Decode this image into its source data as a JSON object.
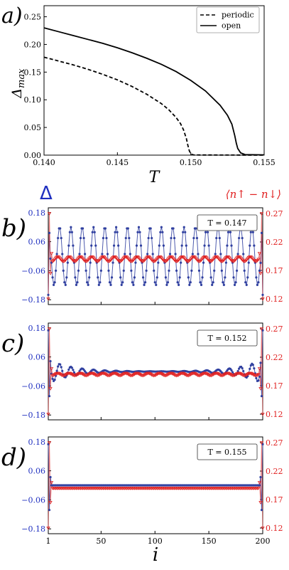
{
  "chart_data": [
    {
      "panel_label": "a)",
      "type": "line",
      "xlabel": "T",
      "ylabel": "Δmax",
      "xlim": [
        0.14,
        0.155
      ],
      "ylim": [
        0,
        0.27
      ],
      "xticks": [
        "0.140",
        "0.145",
        "0.150",
        "0.155"
      ],
      "xtick_values": [
        0.14,
        0.145,
        0.15,
        0.155
      ],
      "yticks": [
        "0.00",
        "0.05",
        "0.10",
        "0.15",
        "0.20",
        "0.25"
      ],
      "ytick_values": [
        0,
        0.05,
        0.1,
        0.15,
        0.2,
        0.25
      ],
      "legend": "top-right",
      "series": [
        {
          "name": "periodic",
          "style": "dashed",
          "points": [
            [
              0.14,
              0.177
            ],
            [
              0.141,
              0.17
            ],
            [
              0.142,
              0.163
            ],
            [
              0.143,
              0.155
            ],
            [
              0.144,
              0.146
            ],
            [
              0.145,
              0.136
            ],
            [
              0.146,
              0.124
            ],
            [
              0.147,
              0.11
            ],
            [
              0.148,
              0.093
            ],
            [
              0.1485,
              0.082
            ],
            [
              0.149,
              0.068
            ],
            [
              0.1493,
              0.057
            ],
            [
              0.1495,
              0.046
            ],
            [
              0.1497,
              0.03
            ],
            [
              0.1498,
              0.018
            ],
            [
              0.1499,
              0.008
            ],
            [
              0.15,
              0.002
            ],
            [
              0.1502,
              0.0003
            ],
            [
              0.155,
              0.0
            ]
          ]
        },
        {
          "name": "open",
          "style": "solid",
          "points": [
            [
              0.14,
              0.23
            ],
            [
              0.141,
              0.223
            ],
            [
              0.142,
              0.216
            ],
            [
              0.143,
              0.209
            ],
            [
              0.144,
              0.202
            ],
            [
              0.145,
              0.194
            ],
            [
              0.146,
              0.185
            ],
            [
              0.147,
              0.175
            ],
            [
              0.148,
              0.164
            ],
            [
              0.149,
              0.151
            ],
            [
              0.15,
              0.135
            ],
            [
              0.151,
              0.116
            ],
            [
              0.152,
              0.09
            ],
            [
              0.1525,
              0.072
            ],
            [
              0.1528,
              0.056
            ],
            [
              0.153,
              0.035
            ],
            [
              0.1531,
              0.022
            ],
            [
              0.1532,
              0.012
            ],
            [
              0.1534,
              0.004
            ],
            [
              0.1537,
              0.001
            ],
            [
              0.155,
              0.0005
            ]
          ]
        }
      ]
    },
    {
      "panel_label": "b)",
      "type": "line",
      "annotation": "T = 0.147",
      "left_axis_label": "Δ",
      "right_axis_label": "⟨n↑ − n↓⟩",
      "xlim": [
        1,
        200
      ],
      "ylim_left": [
        -0.2,
        0.2
      ],
      "ylim_right": [
        0.11,
        0.28
      ],
      "yticks_left": [
        "0.18",
        "0.06",
        "−0.06",
        "−0.18"
      ],
      "ytick_values_left": [
        0.18,
        0.06,
        -0.06,
        -0.18
      ],
      "yticks_right": [
        "0.27",
        "0.22",
        "0.17",
        "0.12"
      ],
      "ytick_values_right": [
        0.27,
        0.22,
        0.17,
        0.12
      ],
      "series_model": {
        "delta": {
          "color": "#3040a0",
          "amplitude": 0.12,
          "envelope_decay": 0,
          "period": 10.5,
          "edge_value": -0.16
        },
        "magnetization": {
          "color": "#e03030",
          "baseline": 0.19,
          "amplitude": 0.004,
          "period": 10.5,
          "edge_value": 0.12
        }
      }
    },
    {
      "panel_label": "c)",
      "type": "line",
      "annotation": "T = 0.152",
      "xlim": [
        1,
        200
      ],
      "ylim_left": [
        -0.2,
        0.2
      ],
      "ylim_right": [
        0.11,
        0.28
      ],
      "yticks_left": [
        "0.18",
        "0.06",
        "−0.06",
        "−0.18"
      ],
      "ytick_values_left": [
        0.18,
        0.06,
        -0.06,
        -0.18
      ],
      "yticks_right": [
        "0.27",
        "0.22",
        "0.17",
        "0.12"
      ],
      "ytick_values_right": [
        0.27,
        0.22,
        0.17,
        0.12
      ],
      "series_model": {
        "delta": {
          "color": "#3040a0",
          "amplitude": 0.05,
          "envelope_decay": 22,
          "period": 10.5,
          "edge_value": 0.17
        },
        "magnetization": {
          "color": "#e03030",
          "baseline": 0.19,
          "amplitude": 0.002,
          "period": 10.5,
          "edge_value": 0.12
        }
      }
    },
    {
      "panel_label": "d)",
      "type": "line",
      "annotation": "T = 0.155",
      "xlabel": "i",
      "xlim": [
        1,
        200
      ],
      "xticks": [
        "1",
        "50",
        "100",
        "150",
        "200"
      ],
      "xtick_values": [
        1,
        50,
        100,
        150,
        200
      ],
      "ylim_left": [
        -0.2,
        0.2
      ],
      "ylim_right": [
        0.11,
        0.28
      ],
      "yticks_left": [
        "0.18",
        "0.06",
        "−0.06",
        "−0.18"
      ],
      "ytick_values_left": [
        0.18,
        0.06,
        -0.06,
        -0.18
      ],
      "yticks_right": [
        "0.27",
        "0.22",
        "0.17",
        "0.12"
      ],
      "ytick_values_right": [
        0.27,
        0.22,
        0.17,
        0.12
      ],
      "series_model": {
        "delta": {
          "color": "#3040a0",
          "amplitude": 0.0,
          "envelope_decay": 0,
          "period": 10.5,
          "edge_value": 0.17
        },
        "magnetization": {
          "color": "#e03030",
          "baseline": 0.19,
          "amplitude": 0.0,
          "period": 10.5,
          "edge_value": 0.12
        }
      }
    }
  ],
  "colors": {
    "delta": "#2030c0",
    "magnetization": "#e02020",
    "axis": "#000000"
  }
}
